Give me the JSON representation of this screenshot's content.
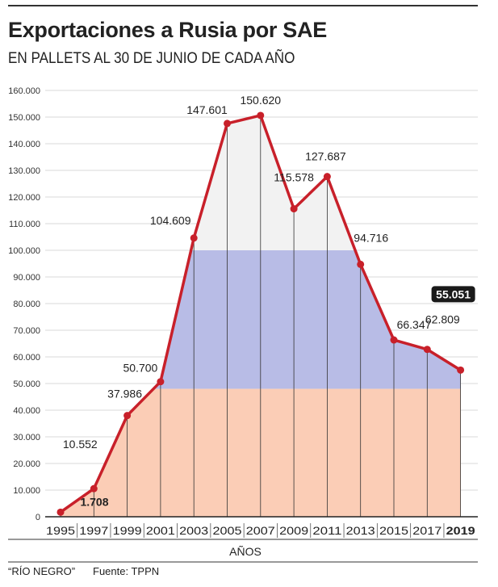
{
  "title": "Exportaciones a Rusia por SAE",
  "subtitle": "EN PALLETS AL 30 DE JUNIO DE CADA AÑO",
  "footer": {
    "credit": "“RÍO NEGRO”",
    "source": "Fuente: TPPN"
  },
  "colors": {
    "line": "#c8202a",
    "white_band": "#f2f2f2",
    "blue_band": "#b8bce6",
    "red_band": "#fbcdb6"
  },
  "chart_data": {
    "type": "line",
    "title": "Exportaciones a Rusia por SAE",
    "subtitle": "EN PALLETS AL 30 DE JUNIO DE CADA AÑO",
    "xlabel": "AÑOS",
    "ylabel": "",
    "x": [
      "1995",
      "1997",
      "1999",
      "2001",
      "2003",
      "2005",
      "2007",
      "2009",
      "2011",
      "2013",
      "2015",
      "2017",
      "2019"
    ],
    "values": [
      1708,
      10552,
      37986,
      50700,
      104609,
      147601,
      150620,
      115578,
      127687,
      94716,
      66347,
      62809,
      55051
    ],
    "labels": [
      "1.708",
      "10.552",
      "37.986",
      "50.700",
      "104.609",
      "147.601",
      "150.620",
      "115.578",
      "127.687",
      "94.716",
      "66.347",
      "62.809",
      "55.051"
    ],
    "ylim": [
      0,
      160000
    ],
    "yticks": [
      0,
      10000,
      20000,
      30000,
      40000,
      50000,
      60000,
      70000,
      80000,
      90000,
      100000,
      110000,
      120000,
      130000,
      140000,
      150000,
      160000
    ],
    "ytick_labels": [
      "0",
      "10.000",
      "20.000",
      "30.000",
      "40.000",
      "50.000",
      "60.000",
      "70.000",
      "80.000",
      "90.000",
      "100.000",
      "110.000",
      "120.000",
      "130.000",
      "140.000",
      "150.000",
      "160.000"
    ],
    "grid": true,
    "highlight": "2019"
  }
}
